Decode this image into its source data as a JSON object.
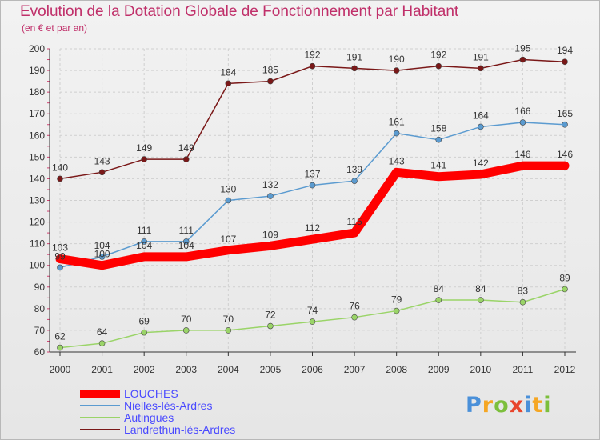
{
  "chart_data": {
    "type": "line",
    "title": "Evolution de la Dotation Globale de Fonctionnement par Habitant",
    "subtitle": "(en € et par an)",
    "x": [
      "2000",
      "2001",
      "2002",
      "2003",
      "2004",
      "2005",
      "2006",
      "2007",
      "2008",
      "2009",
      "2010",
      "2011",
      "2012"
    ],
    "ylim": [
      60,
      200
    ],
    "yticks": [
      60,
      70,
      80,
      90,
      100,
      110,
      120,
      130,
      140,
      150,
      160,
      170,
      180,
      190,
      200
    ],
    "grid": true,
    "series": [
      {
        "name": "Landrethun-lès-Ardres",
        "color": "#7a1818",
        "values": [
          140,
          143,
          149,
          149,
          184,
          185,
          192,
          191,
          190,
          192,
          191,
          195,
          194
        ]
      },
      {
        "name": "Nielles-lès-Ardres",
        "color": "#5b9bd0",
        "values": [
          99,
          104,
          111,
          111,
          130,
          132,
          137,
          139,
          161,
          158,
          164,
          166,
          165
        ]
      },
      {
        "name": "Autingues",
        "color": "#9ad468",
        "values": [
          62,
          64,
          69,
          70,
          70,
          72,
          74,
          76,
          79,
          84,
          84,
          83,
          89
        ]
      },
      {
        "name": "LOUCHES",
        "color": "#ff0000",
        "values": [
          103,
          100,
          104,
          104,
          107,
          109,
          112,
          115,
          143,
          141,
          142,
          146,
          146
        ]
      }
    ],
    "legend": [
      {
        "name": "LOUCHES",
        "color": "#ff0000",
        "thickness": 11
      },
      {
        "name": "Nielles-lès-Ardres",
        "color": "#5b9bd0",
        "thickness": 2
      },
      {
        "name": "Autingues",
        "color": "#9ad468",
        "thickness": 2
      },
      {
        "name": "Landrethun-lès-Ardres",
        "color": "#7a1818",
        "thickness": 2
      }
    ]
  },
  "logo": {
    "letters": [
      {
        "ch": "P",
        "color": "#4a90d9"
      },
      {
        "ch": "r",
        "color": "#f5a623"
      },
      {
        "ch": "o",
        "color": "#7cbf3c"
      },
      {
        "ch": "x",
        "color": "#e8452c"
      },
      {
        "ch": "i",
        "color": "#4a90d9"
      },
      {
        "ch": "t",
        "color": "#f5a623"
      },
      {
        "ch": "i",
        "color": "#7cbf3c"
      }
    ]
  }
}
